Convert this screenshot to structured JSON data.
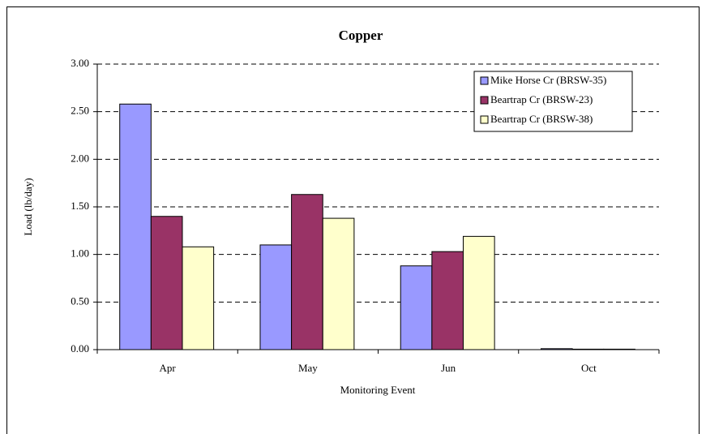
{
  "chart_data": {
    "type": "bar",
    "title": "Copper",
    "x_label": "Monitoring Event",
    "y_label": "Load (lb/day)",
    "categories": [
      "Apr",
      "May",
      "Jun",
      "Oct"
    ],
    "series": [
      {
        "name": "Mike Horse Cr (BRSW-35)",
        "color": "#9999ff",
        "values": [
          2.58,
          1.1,
          0.88,
          0.01
        ]
      },
      {
        "name": "Beartrap Cr (BRSW-23)",
        "color": "#993366",
        "values": [
          1.4,
          1.63,
          1.03,
          0.005
        ]
      },
      {
        "name": "Beartrap Cr (BRSW-38)",
        "color": "#ffffcc",
        "values": [
          1.08,
          1.38,
          1.19,
          0.005
        ]
      }
    ],
    "ylim": [
      0,
      3
    ],
    "yticks": [
      {
        "value": 0,
        "label": "0.00"
      },
      {
        "value": 0.5,
        "label": "0.50"
      },
      {
        "value": 1,
        "label": "1.00"
      },
      {
        "value": 1.5,
        "label": "1.50"
      },
      {
        "value": 2,
        "label": "2.00"
      },
      {
        "value": 2.5,
        "label": "2.50"
      },
      {
        "value": 3,
        "label": "3.00"
      }
    ],
    "grid": true,
    "legend": "upper right"
  }
}
